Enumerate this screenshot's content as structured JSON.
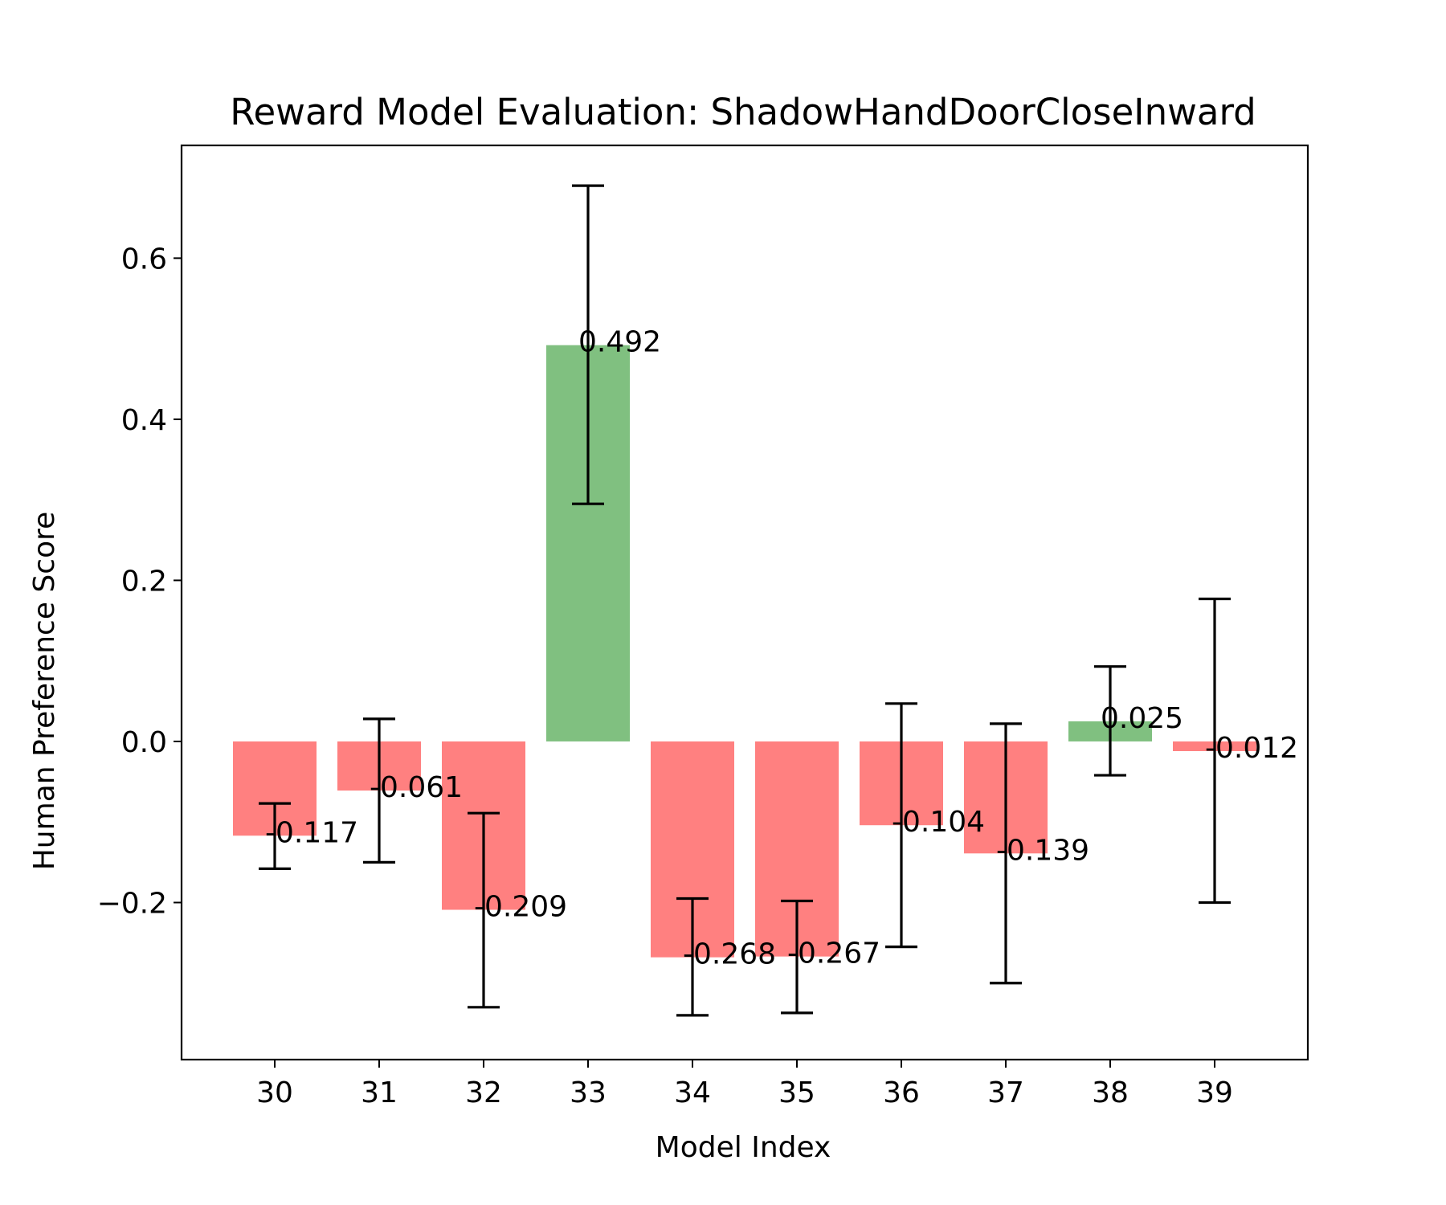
{
  "chart_data": {
    "type": "bar",
    "title": "Reward Model Evaluation: ShadowHandDoorCloseInward",
    "xlabel": "Model Index",
    "ylabel": "Human Preference Score",
    "categories": [
      "30",
      "31",
      "32",
      "33",
      "34",
      "35",
      "36",
      "37",
      "38",
      "39"
    ],
    "values": [
      -0.117,
      -0.061,
      -0.209,
      0.492,
      -0.268,
      -0.267,
      -0.104,
      -0.139,
      0.025,
      -0.012
    ],
    "value_labels": [
      "-0.117",
      "-0.061",
      "-0.209",
      "0.492",
      "-0.268",
      "-0.267",
      "-0.104",
      "-0.139",
      "0.025",
      "-0.012"
    ],
    "error_low": [
      -0.158,
      -0.15,
      -0.33,
      0.295,
      -0.34,
      -0.337,
      -0.255,
      -0.3,
      -0.042,
      -0.2
    ],
    "error_high": [
      -0.077,
      0.028,
      -0.089,
      0.69,
      -0.195,
      -0.198,
      0.047,
      0.022,
      0.093,
      0.177
    ],
    "ylim": [
      -0.395,
      0.74
    ],
    "yticks": [
      -0.2,
      0.0,
      0.2,
      0.4,
      0.6
    ],
    "ytick_labels": [
      "−0.2",
      "0.0",
      "0.2",
      "0.4",
      "0.6"
    ],
    "colors": {
      "positive": "#80c080",
      "negative": "#ff8080",
      "errorbar": "#000000",
      "axes": "#000000"
    },
    "grid": false,
    "legend": false
  }
}
